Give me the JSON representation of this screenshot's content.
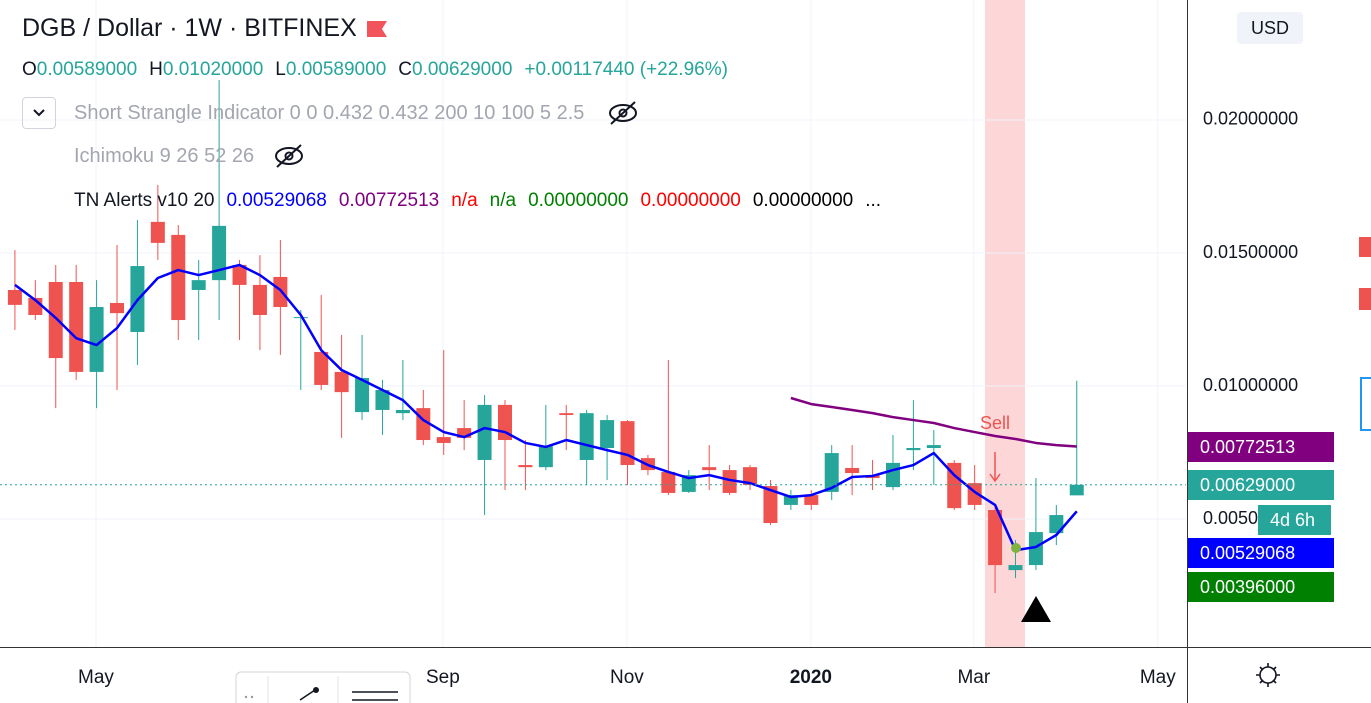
{
  "header": {
    "title": "DGB / Dollar · 1W · BITFINEX",
    "ohlc": [
      {
        "key": "O",
        "value": "0.00589000"
      },
      {
        "key": "H",
        "value": "0.01020000"
      },
      {
        "key": "L",
        "value": "0.00589000"
      },
      {
        "key": "C",
        "value": "0.00629000"
      }
    ],
    "change": "+0.00117440 (+22.96%)",
    "indicators": [
      "Short Strangle Indicator 0 0 0.432 0.432 200 10 100 5 2.5",
      "Ichimoku 9 26 52 26"
    ],
    "alerts_name": "TN Alerts v10 20",
    "alerts_values": [
      {
        "text": "0.00529068",
        "color": "#0000ff"
      },
      {
        "text": "0.00772513",
        "color": "#800080"
      },
      {
        "text": "n/a",
        "color": "#ff0000"
      },
      {
        "text": "n/a",
        "color": "#008000"
      },
      {
        "text": "0.00000000",
        "color": "#008000"
      },
      {
        "text": "0.00000000",
        "color": "#ff0000"
      },
      {
        "text": "0.00000000",
        "color": "#000000"
      },
      {
        "text": "...",
        "color": "#000000"
      }
    ]
  },
  "currency": "USD",
  "price_labels": [
    {
      "text": "0.00772513",
      "color": "#800080"
    },
    {
      "text": "0.00629000",
      "color": "#26a69a"
    },
    {
      "text": "4d 6h",
      "color": "#26a69a"
    },
    {
      "text": "0.00529068",
      "color": "#0000ff"
    },
    {
      "text": "0.00396000",
      "color": "#008000"
    }
  ],
  "annotation": "Sell",
  "chart_data": {
    "type": "candlestick",
    "categories": [
      null,
      null,
      null,
      null,
      null,
      null,
      null,
      null,
      null,
      null,
      null,
      null,
      null,
      null,
      null,
      null,
      null,
      null,
      null,
      null,
      null,
      null,
      null,
      null,
      null,
      null,
      null,
      null,
      null,
      null,
      null,
      null,
      null,
      null,
      null,
      null,
      null,
      null,
      null,
      null,
      null,
      null,
      null,
      null,
      null,
      null,
      null,
      null,
      null,
      null,
      null,
      null,
      null
    ],
    "open": [
      0.01361,
      0.01331,
      0.01391,
      0.01391,
      0.01053,
      0.01312,
      0.01203,
      0.01617,
      0.01568,
      0.01361,
      0.01398,
      0.01455,
      0.0138,
      0.0141,
      0.01256,
      0.01128,
      0.01053,
      0.00902,
      0.0091,
      0.00898,
      0.00917,
      0.00808,
      0.00842,
      0.00722,
      0.00929,
      0.00703,
      0.00695,
      0.00898,
      0.00722,
      0.00767,
      0.00868,
      0.00729,
      0.00677,
      0.00602,
      0.00695,
      0.00684,
      0.00695,
      0.00624,
      0.00553,
      0.0059,
      0.00602,
      0.00692,
      0.00665,
      0.0062,
      0.00759,
      0.00767,
      0.00711,
      0.00635,
      0.00534,
      0.00308,
      0.00327,
      0.00447,
      0.00589
    ],
    "high": [
      0.01511,
      0.01398,
      0.01455,
      0.01455,
      0.01398,
      0.0153,
      0.01624,
      0.01756,
      0.01605,
      0.01474,
      0.0215,
      0.01474,
      0.01492,
      0.01549,
      0.01286,
      0.01342,
      0.01192,
      0.01192,
      0.01023,
      0.01098,
      0.00985,
      0.01135,
      0.00947,
      0.00966,
      0.00947,
      0.00797,
      0.00929,
      0.00929,
      0.0091,
      0.00891,
      0.00872,
      0.00741,
      0.01098,
      0.00684,
      0.00778,
      0.00703,
      0.00703,
      0.00647,
      0.00609,
      0.00609,
      0.00778,
      0.00778,
      0.00722,
      0.00816,
      0.00947,
      0.00835,
      0.00722,
      0.00703,
      0.00553,
      0.00421,
      0.00654,
      0.00553,
      0.0102
    ],
    "low": [
      0.01211,
      0.01248,
      0.00917,
      0.01023,
      0.00917,
      0.00985,
      0.01079,
      0.01474,
      0.01173,
      0.01173,
      0.01248,
      0.01173,
      0.01135,
      0.01117,
      0.00985,
      0.00985,
      0.00805,
      0.00872,
      0.00816,
      0.00872,
      0.00778,
      0.00741,
      0.00759,
      0.00515,
      0.00609,
      0.00609,
      0.00684,
      0.00759,
      0.00628,
      0.00647,
      0.00628,
      0.00665,
      0.0059,
      0.00598,
      0.00609,
      0.0059,
      0.00609,
      0.00477,
      0.00534,
      0.00534,
      0.00571,
      0.0059,
      0.00609,
      0.00609,
      0.00684,
      0.00628,
      0.00534,
      0.00534,
      0.00222,
      0.00278,
      0.00308,
      0.00402,
      0.00589
    ],
    "close": [
      0.01305,
      0.01267,
      0.01105,
      0.01053,
      0.01297,
      0.01274,
      0.01451,
      0.01538,
      0.01248,
      0.01398,
      0.01602,
      0.0138,
      0.01267,
      0.01297,
      0.01259,
      0.01004,
      0.00977,
      0.0103,
      0.00985,
      0.0091,
      0.00797,
      0.00786,
      0.00805,
      0.00929,
      0.00797,
      0.00695,
      0.00774,
      0.00891,
      0.00898,
      0.00872,
      0.00703,
      0.00684,
      0.00598,
      0.00665,
      0.00684,
      0.00598,
      0.00628,
      0.00485,
      0.0059,
      0.00553,
      0.00748,
      0.00673,
      0.00654,
      0.00711,
      0.00767,
      0.00778,
      0.00541,
      0.00553,
      0.00327,
      0.00327,
      0.00451,
      0.00515,
      0.00629
    ],
    "up_color": "#26a69a",
    "down_color": "#ef5350",
    "overlays": [
      {
        "color": "#0000ff",
        "values": [
          0.0138,
          0.01323,
          0.01256,
          0.0118,
          0.01154,
          0.01218,
          0.01323,
          0.01406,
          0.01436,
          0.01417,
          0.01436,
          0.01455,
          0.01417,
          0.01361,
          0.01267,
          0.01135,
          0.0106,
          0.01023,
          0.00985,
          0.00947,
          0.00872,
          0.00827,
          0.00808,
          0.00842,
          0.00827,
          0.00786,
          0.00771,
          0.00797,
          0.00778,
          0.00759,
          0.00741,
          0.00703,
          0.00677,
          0.00654,
          0.00665,
          0.00647,
          0.00635,
          0.00609,
          0.00583,
          0.0059,
          0.00617,
          0.00658,
          0.00662,
          0.00684,
          0.00703,
          0.00748,
          0.00665,
          0.00602,
          0.00553,
          0.00383,
          0.00395,
          0.0044,
          0.00529068
        ]
      },
      {
        "color": "#800080",
        "values": [
          null,
          null,
          null,
          null,
          null,
          null,
          null,
          null,
          null,
          null,
          null,
          null,
          null,
          null,
          null,
          null,
          null,
          null,
          null,
          null,
          null,
          null,
          null,
          null,
          null,
          null,
          null,
          null,
          null,
          null,
          null,
          null,
          null,
          null,
          null,
          null,
          null,
          null,
          0.00955,
          0.00932,
          0.00921,
          0.0091,
          0.00898,
          0.00883,
          0.00872,
          0.00861,
          0.00842,
          0.00827,
          0.00812,
          0.00801,
          0.00786,
          0.00778,
          0.00772513
        ]
      }
    ],
    "ylim": [
      0.00019,
      0.02451
    ],
    "yticks": [
      {
        "value": 0.005,
        "label": "0.00500000"
      },
      {
        "value": 0.01,
        "label": "0.01000000"
      },
      {
        "value": 0.015,
        "label": "0.01500000"
      },
      {
        "value": 0.02,
        "label": "0.02000000"
      }
    ],
    "xlim": [
      -0.73,
      57.35
    ],
    "xticks": [
      {
        "value": 3.97,
        "label": "May"
      },
      {
        "value": 20.96,
        "label": "Sep"
      },
      {
        "value": 29.97,
        "label": "Nov"
      },
      {
        "value": 38.98,
        "label": "2020"
      },
      {
        "value": 46.96,
        "label": "Mar"
      },
      {
        "value": 55.97,
        "label": "May"
      }
    ],
    "grid": true
  }
}
